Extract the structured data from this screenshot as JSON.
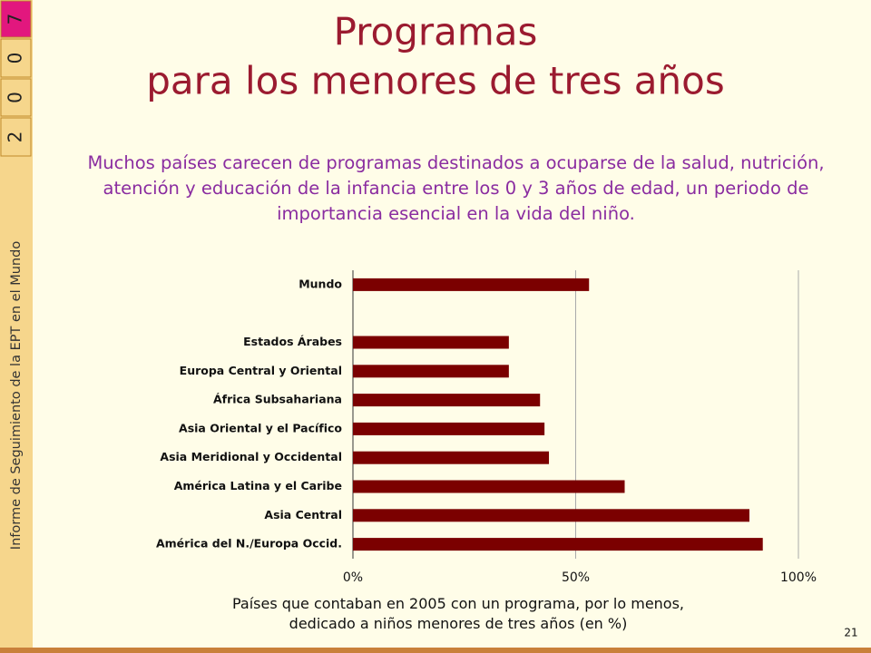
{
  "sidebar": {
    "year_digits": [
      "7",
      "0",
      "0",
      "2"
    ],
    "caption": "Informe de Seguimiento de la EPT en el Mundo"
  },
  "title_lines": [
    "Programas",
    "para los menores de tres años"
  ],
  "subtitle": "Muchos países carecen de programas destinados a ocuparse de la salud, nutrición, atención y educación de la infancia entre los 0 y 3 años de edad, un periodo de importancia esencial en la vida del niño.",
  "chart_data": {
    "type": "hbar",
    "categories": [
      "Mundo",
      null,
      "Estados Árabes",
      "Europa Central y Oriental",
      "África Subsahariana",
      "Asia Oriental y el Pacífico",
      "Asia Meridional y Occidental",
      "América Latina y el Caribe",
      "Asia Central",
      "América del N./Europa Occid."
    ],
    "values": [
      53,
      null,
      35,
      35,
      42,
      43,
      44,
      61,
      89,
      92
    ],
    "color": "#7b0000",
    "xlim": [
      0,
      100
    ],
    "xticks": [
      {
        "value": 0,
        "label": "0%"
      },
      {
        "value": 50,
        "label": "50%"
      },
      {
        "value": 100,
        "label": "100%"
      }
    ],
    "grid": true,
    "xlabel": "Países que contaban en 2005 con un programa, por lo menos, dedicado a niños menores de tres años (en %)"
  },
  "page_number": 21
}
